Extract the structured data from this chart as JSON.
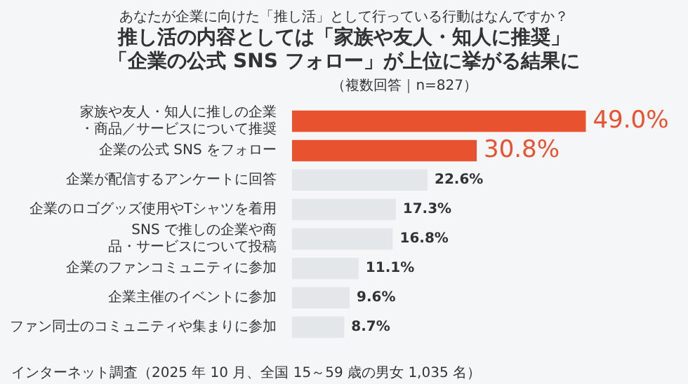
{
  "chart_data": {
    "type": "bar",
    "orientation": "horizontal",
    "title": "あなたが企業に向けた「推し活」として行っている行動はなんですか？",
    "subtitle": "推し活の内容としては「家族や友人・知人に推奨」「企業の公式 SNS フォロー」が上位に挙がる結果に",
    "categories": [
      "家族や友人・知人に推しの企業・商品／サービスについて推奨",
      "企業の公式 SNS をフォロー",
      "企業が配信するアンケートに回答",
      "企業のロゴグッズ使用やTシャツを着用",
      "SNS で推しの企業や商品・サービスについて投稿",
      "企業のファンコミュニティに参加",
      "企業主催のイベントに参加",
      "ファン同士のコミュニティや集まりに参加"
    ],
    "values": [
      49.0,
      30.8,
      22.6,
      17.3,
      16.8,
      11.1,
      9.6,
      8.7
    ],
    "colors": [
      "#e8522f",
      "#e8522f",
      "#e3e7ea",
      "#e3e7ea",
      "#e3e7ea",
      "#e3e7ea",
      "#e3e7ea",
      "#e3e7ea"
    ],
    "value_labels": [
      "49.0%",
      "30.8%",
      "22.6%",
      "17.3%",
      "16.8%",
      "11.1%",
      "9.6%",
      "8.7%"
    ],
    "tick_labels": "y",
    "legend": false,
    "annotations": [
      "（複数回答｜n=827）",
      "インターネット調査（2025 年 10 月、全国 15～59 歳の男女 1,035 名）"
    ]
  }
}
